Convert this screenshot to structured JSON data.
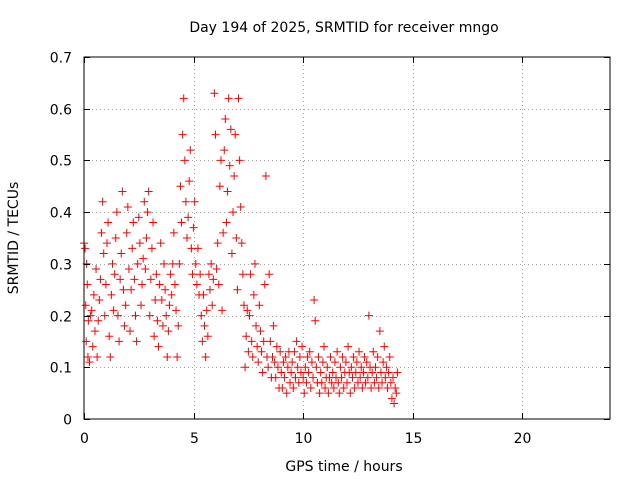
{
  "chart_data": {
    "type": "scatter",
    "title": "Day 194 of 2025, SRMTID for receiver mngo",
    "xlabel": "GPS time / hours",
    "ylabel": "SRMTID / TECUs",
    "xlim": [
      0,
      24
    ],
    "ylim": [
      0,
      0.7
    ],
    "x_ticks": [
      0,
      5,
      10,
      15,
      20
    ],
    "x_tick_labels": [
      "0",
      "5",
      "10",
      "15",
      "20"
    ],
    "y_ticks": [
      0,
      0.1,
      0.2,
      0.3,
      0.4,
      0.5,
      0.6,
      0.7
    ],
    "y_tick_labels": [
      "0",
      "0.1",
      "0.2",
      "0.3",
      "0.4",
      "0.5",
      "0.6",
      "0.7"
    ],
    "grid": true,
    "marker": "+",
    "marker_color": "#ff0000",
    "series": [
      {
        "name": "SRMTID",
        "points": [
          [
            0.0,
            0.34
          ],
          [
            0.05,
            0.33
          ],
          [
            0.08,
            0.22
          ],
          [
            0.1,
            0.15
          ],
          [
            0.12,
            0.3
          ],
          [
            0.15,
            0.26
          ],
          [
            0.18,
            0.12
          ],
          [
            0.2,
            0.19
          ],
          [
            0.25,
            0.11
          ],
          [
            0.3,
            0.2
          ],
          [
            0.35,
            0.21
          ],
          [
            0.4,
            0.14
          ],
          [
            0.45,
            0.24
          ],
          [
            0.5,
            0.17
          ],
          [
            0.55,
            0.29
          ],
          [
            0.6,
            0.12
          ],
          [
            0.65,
            0.19
          ],
          [
            0.7,
            0.23
          ],
          [
            0.75,
            0.27
          ],
          [
            0.8,
            0.36
          ],
          [
            0.85,
            0.42
          ],
          [
            0.9,
            0.32
          ],
          [
            0.95,
            0.2
          ],
          [
            1.0,
            0.26
          ],
          [
            1.05,
            0.34
          ],
          [
            1.1,
            0.38
          ],
          [
            1.15,
            0.16
          ],
          [
            1.2,
            0.12
          ],
          [
            1.25,
            0.24
          ],
          [
            1.3,
            0.3
          ],
          [
            1.35,
            0.21
          ],
          [
            1.4,
            0.28
          ],
          [
            1.45,
            0.35
          ],
          [
            1.5,
            0.4
          ],
          [
            1.55,
            0.2
          ],
          [
            1.6,
            0.15
          ],
          [
            1.65,
            0.27
          ],
          [
            1.7,
            0.32
          ],
          [
            1.75,
            0.44
          ],
          [
            1.8,
            0.25
          ],
          [
            1.85,
            0.18
          ],
          [
            1.9,
            0.22
          ],
          [
            1.95,
            0.36
          ],
          [
            2.0,
            0.41
          ],
          [
            2.05,
            0.29
          ],
          [
            2.1,
            0.17
          ],
          [
            2.15,
            0.25
          ],
          [
            2.2,
            0.33
          ],
          [
            2.25,
            0.38
          ],
          [
            2.3,
            0.27
          ],
          [
            2.35,
            0.2
          ],
          [
            2.4,
            0.15
          ],
          [
            2.45,
            0.3
          ],
          [
            2.5,
            0.39
          ],
          [
            2.55,
            0.34
          ],
          [
            2.6,
            0.22
          ],
          [
            2.65,
            0.26
          ],
          [
            2.7,
            0.31
          ],
          [
            2.75,
            0.42
          ],
          [
            2.8,
            0.29
          ],
          [
            2.85,
            0.35
          ],
          [
            2.9,
            0.4
          ],
          [
            2.95,
            0.44
          ],
          [
            3.0,
            0.2
          ],
          [
            3.05,
            0.27
          ],
          [
            3.1,
            0.33
          ],
          [
            3.15,
            0.38
          ],
          [
            3.2,
            0.16
          ],
          [
            3.25,
            0.23
          ],
          [
            3.3,
            0.28
          ],
          [
            3.35,
            0.19
          ],
          [
            3.4,
            0.14
          ],
          [
            3.45,
            0.26
          ],
          [
            3.5,
            0.34
          ],
          [
            3.55,
            0.23
          ],
          [
            3.6,
            0.18
          ],
          [
            3.65,
            0.3
          ],
          [
            3.7,
            0.25
          ],
          [
            3.75,
            0.2
          ],
          [
            3.8,
            0.12
          ],
          [
            3.85,
            0.17
          ],
          [
            3.9,
            0.22
          ],
          [
            3.95,
            0.28
          ],
          [
            4.0,
            0.24
          ],
          [
            4.05,
            0.3
          ],
          [
            4.1,
            0.36
          ],
          [
            4.15,
            0.26
          ],
          [
            4.2,
            0.21
          ],
          [
            4.25,
            0.12
          ],
          [
            4.3,
            0.18
          ],
          [
            4.35,
            0.3
          ],
          [
            4.4,
            0.45
          ],
          [
            4.45,
            0.38
          ],
          [
            4.5,
            0.55
          ],
          [
            4.55,
            0.62
          ],
          [
            4.6,
            0.5
          ],
          [
            4.65,
            0.42
          ],
          [
            4.7,
            0.35
          ],
          [
            4.75,
            0.39
          ],
          [
            4.8,
            0.46
          ],
          [
            4.85,
            0.52
          ],
          [
            4.9,
            0.33
          ],
          [
            4.95,
            0.28
          ],
          [
            5.0,
            0.37
          ],
          [
            5.05,
            0.42
          ],
          [
            5.1,
            0.3
          ],
          [
            5.15,
            0.26
          ],
          [
            5.2,
            0.33
          ],
          [
            5.25,
            0.24
          ],
          [
            5.3,
            0.28
          ],
          [
            5.35,
            0.2
          ],
          [
            5.4,
            0.15
          ],
          [
            5.45,
            0.24
          ],
          [
            5.5,
            0.18
          ],
          [
            5.55,
            0.12
          ],
          [
            5.6,
            0.21
          ],
          [
            5.65,
            0.16
          ],
          [
            5.7,
            0.28
          ],
          [
            5.75,
            0.25
          ],
          [
            5.8,
            0.3
          ],
          [
            5.85,
            0.22
          ],
          [
            5.9,
            0.27
          ],
          [
            5.95,
            0.63
          ],
          [
            6.0,
            0.55
          ],
          [
            6.05,
            0.29
          ],
          [
            6.1,
            0.34
          ],
          [
            6.15,
            0.26
          ],
          [
            6.2,
            0.45
          ],
          [
            6.25,
            0.5
          ],
          [
            6.3,
            0.21
          ],
          [
            6.35,
            0.36
          ],
          [
            6.4,
            0.52
          ],
          [
            6.45,
            0.58
          ],
          [
            6.5,
            0.38
          ],
          [
            6.55,
            0.44
          ],
          [
            6.6,
            0.62
          ],
          [
            6.65,
            0.49
          ],
          [
            6.7,
            0.56
          ],
          [
            6.75,
            0.32
          ],
          [
            6.8,
            0.4
          ],
          [
            6.85,
            0.47
          ],
          [
            6.9,
            0.55
          ],
          [
            6.95,
            0.35
          ],
          [
            7.0,
            0.25
          ],
          [
            7.05,
            0.62
          ],
          [
            7.1,
            0.5
          ],
          [
            7.15,
            0.41
          ],
          [
            7.2,
            0.34
          ],
          [
            7.25,
            0.28
          ],
          [
            7.3,
            0.22
          ],
          [
            7.35,
            0.1
          ],
          [
            7.4,
            0.16
          ],
          [
            7.45,
            0.21
          ],
          [
            7.5,
            0.13
          ],
          [
            7.55,
            0.2
          ],
          [
            7.6,
            0.28
          ],
          [
            7.65,
            0.15
          ],
          [
            7.7,
            0.12
          ],
          [
            7.75,
            0.24
          ],
          [
            7.8,
            0.3
          ],
          [
            7.85,
            0.18
          ],
          [
            7.9,
            0.14
          ],
          [
            7.95,
            0.11
          ],
          [
            8.0,
            0.22
          ],
          [
            8.05,
            0.17
          ],
          [
            8.1,
            0.13
          ],
          [
            8.15,
            0.09
          ],
          [
            8.2,
            0.15
          ],
          [
            8.25,
            0.26
          ],
          [
            8.3,
            0.47
          ],
          [
            8.35,
            0.12
          ],
          [
            8.4,
            0.1
          ],
          [
            8.45,
            0.28
          ],
          [
            8.5,
            0.15
          ],
          [
            8.55,
            0.08
          ],
          [
            8.6,
            0.12
          ],
          [
            8.65,
            0.18
          ],
          [
            8.7,
            0.11
          ],
          [
            8.75,
            0.08
          ],
          [
            8.8,
            0.14
          ],
          [
            8.85,
            0.1
          ],
          [
            8.9,
            0.06
          ],
          [
            8.95,
            0.13
          ],
          [
            9.0,
            0.09
          ],
          [
            9.05,
            0.06
          ],
          [
            9.1,
            0.11
          ],
          [
            9.15,
            0.08
          ],
          [
            9.2,
            0.12
          ],
          [
            9.25,
            0.05
          ],
          [
            9.3,
            0.1
          ],
          [
            9.35,
            0.13
          ],
          [
            9.4,
            0.07
          ],
          [
            9.45,
            0.09
          ],
          [
            9.5,
            0.11
          ],
          [
            9.55,
            0.06
          ],
          [
            9.6,
            0.13
          ],
          [
            9.65,
            0.08
          ],
          [
            9.7,
            0.15
          ],
          [
            9.75,
            0.1
          ],
          [
            9.8,
            0.07
          ],
          [
            9.85,
            0.12
          ],
          [
            9.9,
            0.09
          ],
          [
            9.95,
            0.14
          ],
          [
            10.0,
            0.08
          ],
          [
            10.05,
            0.05
          ],
          [
            10.1,
            0.1
          ],
          [
            10.15,
            0.07
          ],
          [
            10.2,
            0.12
          ],
          [
            10.25,
            0.09
          ],
          [
            10.3,
            0.13
          ],
          [
            10.35,
            0.06
          ],
          [
            10.4,
            0.11
          ],
          [
            10.45,
            0.08
          ],
          [
            10.5,
            0.23
          ],
          [
            10.55,
            0.19
          ],
          [
            10.6,
            0.1
          ],
          [
            10.65,
            0.07
          ],
          [
            10.7,
            0.12
          ],
          [
            10.75,
            0.05
          ],
          [
            10.8,
            0.09
          ],
          [
            10.85,
            0.07
          ],
          [
            10.9,
            0.11
          ],
          [
            10.95,
            0.14
          ],
          [
            11.0,
            0.06
          ],
          [
            11.05,
            0.08
          ],
          [
            11.1,
            0.1
          ],
          [
            11.15,
            0.05
          ],
          [
            11.2,
            0.08
          ],
          [
            11.25,
            0.12
          ],
          [
            11.3,
            0.07
          ],
          [
            11.35,
            0.09
          ],
          [
            11.4,
            0.06
          ],
          [
            11.45,
            0.11
          ],
          [
            11.5,
            0.08
          ],
          [
            11.55,
            0.13
          ],
          [
            11.6,
            0.07
          ],
          [
            11.65,
            0.05
          ],
          [
            11.7,
            0.1
          ],
          [
            11.75,
            0.08
          ],
          [
            11.8,
            0.12
          ],
          [
            11.85,
            0.06
          ],
          [
            11.9,
            0.09
          ],
          [
            11.95,
            0.11
          ],
          [
            12.0,
            0.07
          ],
          [
            12.05,
            0.14
          ],
          [
            12.1,
            0.09
          ],
          [
            12.15,
            0.05
          ],
          [
            12.2,
            0.1
          ],
          [
            12.25,
            0.08
          ],
          [
            12.3,
            0.12
          ],
          [
            12.35,
            0.06
          ],
          [
            12.4,
            0.09
          ],
          [
            12.45,
            0.11
          ],
          [
            12.5,
            0.07
          ],
          [
            12.55,
            0.13
          ],
          [
            12.6,
            0.08
          ],
          [
            12.65,
            0.1
          ],
          [
            12.7,
            0.06
          ],
          [
            12.75,
            0.09
          ],
          [
            12.8,
            0.12
          ],
          [
            12.85,
            0.07
          ],
          [
            12.9,
            0.11
          ],
          [
            12.95,
            0.08
          ],
          [
            13.0,
            0.2
          ],
          [
            13.05,
            0.1
          ],
          [
            13.1,
            0.06
          ],
          [
            13.15,
            0.09
          ],
          [
            13.2,
            0.13
          ],
          [
            13.25,
            0.07
          ],
          [
            13.3,
            0.1
          ],
          [
            13.35,
            0.08
          ],
          [
            13.4,
            0.12
          ],
          [
            13.45,
            0.06
          ],
          [
            13.5,
            0.17
          ],
          [
            13.55,
            0.09
          ],
          [
            13.6,
            0.07
          ],
          [
            13.65,
            0.11
          ],
          [
            13.7,
            0.14
          ],
          [
            13.75,
            0.08
          ],
          [
            13.8,
            0.1
          ],
          [
            13.85,
            0.06
          ],
          [
            13.9,
            0.09
          ],
          [
            13.95,
            0.12
          ],
          [
            14.0,
            0.07
          ],
          [
            14.05,
            0.04
          ],
          [
            14.1,
            0.08
          ],
          [
            14.15,
            0.03
          ],
          [
            14.2,
            0.06
          ],
          [
            14.25,
            0.05
          ],
          [
            14.3,
            0.09
          ]
        ]
      }
    ]
  }
}
